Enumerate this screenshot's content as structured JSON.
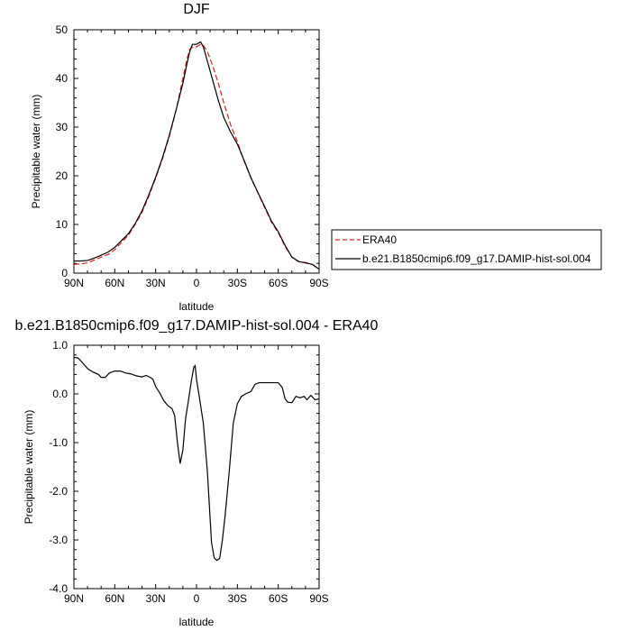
{
  "chart_data": [
    {
      "type": "line",
      "title": "DJF",
      "xlabel": "latitude",
      "ylabel": "Precipitable water (mm)",
      "xlim": [
        90,
        -90
      ],
      "ylim": [
        0,
        50
      ],
      "x_tick_values": [
        90,
        60,
        30,
        0,
        -30,
        -60,
        -90
      ],
      "x_tick_labels": [
        "90N",
        "60N",
        "30N",
        "0",
        "30S",
        "60S",
        "90S"
      ],
      "y_tick_values": [
        0,
        10,
        20,
        30,
        40,
        50
      ],
      "y_tick_labels": [
        "0",
        "10",
        "20",
        "30",
        "40",
        "50"
      ],
      "legend_position": "outside-right",
      "series": [
        {
          "name": "ERA40",
          "color": "#e31a1c",
          "dash": "dashed",
          "points": [
            [
              90,
              1.8
            ],
            [
              85,
              1.9
            ],
            [
              80,
              2.1
            ],
            [
              75,
              2.7
            ],
            [
              70,
              3.3
            ],
            [
              65,
              3.8
            ],
            [
              60,
              4.8
            ],
            [
              55,
              6.3
            ],
            [
              50,
              7.8
            ],
            [
              45,
              10.0
            ],
            [
              40,
              12.5
            ],
            [
              35,
              15.8
            ],
            [
              30,
              19.5
            ],
            [
              25,
              23.5
            ],
            [
              20,
              28.0
            ],
            [
              15,
              33.5
            ],
            [
              10,
              40.0
            ],
            [
              7,
              44.0
            ],
            [
              5,
              46.0
            ],
            [
              3,
              46.4
            ],
            [
              0,
              46.5
            ],
            [
              -3,
              47.0
            ],
            [
              -5,
              46.8
            ],
            [
              -8,
              45.5
            ],
            [
              -12,
              42.5
            ],
            [
              -16,
              39.0
            ],
            [
              -20,
              35.0
            ],
            [
              -25,
              30.5
            ],
            [
              -30,
              27.0
            ],
            [
              -35,
              23.0
            ],
            [
              -40,
              19.5
            ],
            [
              -45,
              16.5
            ],
            [
              -50,
              13.5
            ],
            [
              -55,
              10.5
            ],
            [
              -60,
              8.3
            ],
            [
              -65,
              5.5
            ],
            [
              -70,
              3.3
            ],
            [
              -75,
              2.3
            ],
            [
              -80,
              2.2
            ],
            [
              -85,
              1.8
            ],
            [
              -88,
              1.2
            ],
            [
              -90,
              0.9
            ]
          ]
        },
        {
          "name": "b.e21.B1850cmip6.f09_g17.DAMIP-hist-sol.004",
          "color": "#000000",
          "dash": "solid",
          "points": [
            [
              90,
              2.5
            ],
            [
              85,
              2.5
            ],
            [
              80,
              2.6
            ],
            [
              75,
              3.1
            ],
            [
              70,
              3.7
            ],
            [
              65,
              4.3
            ],
            [
              60,
              5.3
            ],
            [
              55,
              6.7
            ],
            [
              50,
              8.1
            ],
            [
              45,
              10.2
            ],
            [
              40,
              12.8
            ],
            [
              35,
              16.1
            ],
            [
              30,
              19.7
            ],
            [
              25,
              23.7
            ],
            [
              20,
              28.3
            ],
            [
              15,
              33.5
            ],
            [
              10,
              39.0
            ],
            [
              7,
              43.0
            ],
            [
              5,
              45.5
            ],
            [
              3,
              47.0
            ],
            [
              0,
              47.0
            ],
            [
              -3,
              47.5
            ],
            [
              -5,
              46.5
            ],
            [
              -8,
              43.5
            ],
            [
              -12,
              39.5
            ],
            [
              -16,
              35.5
            ],
            [
              -20,
              32.0
            ],
            [
              -25,
              29.0
            ],
            [
              -30,
              26.5
            ],
            [
              -35,
              23.1
            ],
            [
              -40,
              19.6
            ],
            [
              -45,
              16.6
            ],
            [
              -50,
              13.7
            ],
            [
              -55,
              10.7
            ],
            [
              -60,
              8.5
            ],
            [
              -65,
              5.7
            ],
            [
              -70,
              3.3
            ],
            [
              -75,
              2.4
            ],
            [
              -80,
              2.1
            ],
            [
              -85,
              1.8
            ],
            [
              -88,
              1.2
            ],
            [
              -90,
              0.8
            ]
          ]
        }
      ]
    },
    {
      "type": "line",
      "title": "b.e21.B1850cmip6.f09_g17.DAMIP-hist-sol.004 - ERA40",
      "xlabel": "latitude",
      "ylabel": "Precipitable water (mm)",
      "xlim": [
        90,
        -90
      ],
      "ylim": [
        -4.0,
        1.0
      ],
      "x_tick_values": [
        90,
        60,
        30,
        0,
        -30,
        -60,
        -90
      ],
      "x_tick_labels": [
        "90N",
        "60N",
        "30N",
        "0",
        "30S",
        "60S",
        "90S"
      ],
      "y_tick_values": [
        1.0,
        0,
        -1.0,
        -2.0,
        -3.0,
        -4.0
      ],
      "y_tick_labels": [
        "1.0",
        "0.0",
        "-1.0",
        "-2.0",
        "-3.0",
        "-4.0"
      ],
      "series": [
        {
          "color": "#000000",
          "dash": "solid",
          "points": [
            [
              90,
              0.75
            ],
            [
              87,
              0.74
            ],
            [
              83,
              0.62
            ],
            [
              80,
              0.52
            ],
            [
              76,
              0.45
            ],
            [
              72,
              0.4
            ],
            [
              70,
              0.34
            ],
            [
              67,
              0.34
            ],
            [
              64,
              0.43
            ],
            [
              60,
              0.47
            ],
            [
              56,
              0.47
            ],
            [
              52,
              0.43
            ],
            [
              48,
              0.41
            ],
            [
              44,
              0.37
            ],
            [
              40,
              0.35
            ],
            [
              37,
              0.38
            ],
            [
              34,
              0.34
            ],
            [
              32,
              0.3
            ],
            [
              30,
              0.15
            ],
            [
              27,
              0.02
            ],
            [
              24,
              -0.14
            ],
            [
              21,
              -0.24
            ],
            [
              18,
              -0.3
            ],
            [
              16,
              -0.45
            ],
            [
              14,
              -1.0
            ],
            [
              12,
              -1.43
            ],
            [
              10,
              -1.15
            ],
            [
              8,
              -0.5
            ],
            [
              6,
              -0.15
            ],
            [
              4,
              0.23
            ],
            [
              2,
              0.55
            ],
            [
              1,
              0.58
            ],
            [
              0,
              0.3
            ],
            [
              -2,
              -0.05
            ],
            [
              -5,
              -0.6
            ],
            [
              -8,
              -1.6
            ],
            [
              -11,
              -3.05
            ],
            [
              -13,
              -3.37
            ],
            [
              -15,
              -3.42
            ],
            [
              -17,
              -3.38
            ],
            [
              -19,
              -3.0
            ],
            [
              -21,
              -2.5
            ],
            [
              -24,
              -1.6
            ],
            [
              -27,
              -0.6
            ],
            [
              -30,
              -0.2
            ],
            [
              -33,
              -0.05
            ],
            [
              -36,
              0.0
            ],
            [
              -40,
              0.05
            ],
            [
              -43,
              0.2
            ],
            [
              -46,
              0.23
            ],
            [
              -50,
              0.23
            ],
            [
              -55,
              0.23
            ],
            [
              -60,
              0.23
            ],
            [
              -63,
              0.13
            ],
            [
              -65,
              -0.1
            ],
            [
              -67,
              -0.17
            ],
            [
              -70,
              -0.18
            ],
            [
              -73,
              -0.05
            ],
            [
              -76,
              -0.08
            ],
            [
              -79,
              -0.05
            ],
            [
              -81,
              -0.12
            ],
            [
              -84,
              -0.03
            ],
            [
              -87,
              -0.12
            ],
            [
              -90,
              -0.1
            ]
          ]
        }
      ]
    }
  ]
}
